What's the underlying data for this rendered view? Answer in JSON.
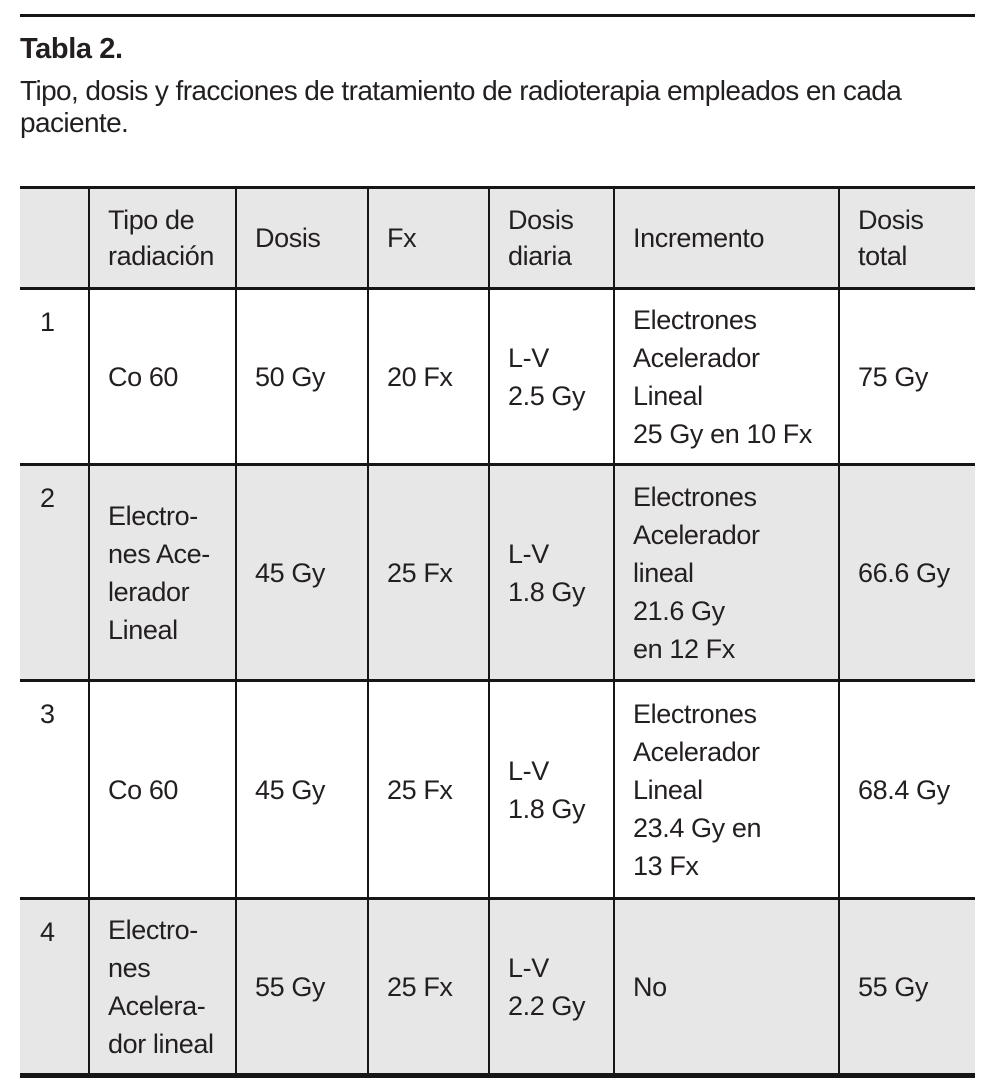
{
  "page": {
    "title": "Tabla 2.",
    "subtitle": "Tipo, dosis y fracciones de tratamiento de radioterapia empleados en cada paciente."
  },
  "table": {
    "header": {
      "num": "",
      "tipo": "Tipo de\nradiación",
      "dosis": "Dosis",
      "fx": "Fx",
      "dosis_diaria": "Dosis\ndiaria",
      "incremento": "Incremento",
      "dosis_total": "Dosis\ntotal"
    },
    "rows": [
      {
        "num": "1",
        "tipo": "Co 60",
        "dosis": "50 Gy",
        "fx": "20 Fx",
        "dosis_diaria": "L-V\n2.5 Gy",
        "incremento": "Electrones\nAcelerador\nLineal\n25 Gy en 10 Fx",
        "dosis_total": "75 Gy"
      },
      {
        "num": "2",
        "tipo": "Electro-\nnes Ace-\nlerador\nLineal",
        "dosis": "45 Gy",
        "fx": "25 Fx",
        "dosis_diaria": "L-V\n1.8 Gy",
        "incremento": "Electrones\nAcelerador\nlineal\n21.6 Gy\nen 12 Fx",
        "dosis_total": "66.6 Gy"
      },
      {
        "num": "3",
        "tipo": "Co 60",
        "dosis": "45 Gy",
        "fx": "25 Fx",
        "dosis_diaria": "L-V\n1.8 Gy",
        "incremento": "Electrones\nAcelerador\nLineal\n23.4 Gy en\n13 Fx",
        "dosis_total": "68.4 Gy"
      },
      {
        "num": "4",
        "tipo": "Electro-\nnes\nAcelera-\ndor lineal",
        "dosis": "55 Gy",
        "fx": "25 Fx",
        "dosis_diaria": "L-V\n2.2 Gy",
        "incremento": "No",
        "dosis_total": "55 Gy"
      }
    ],
    "colors": {
      "header_bg": "#e7e7e8",
      "zebra_bg": "#e7e7e8",
      "rule": "#161616",
      "text": "#231f20"
    }
  }
}
